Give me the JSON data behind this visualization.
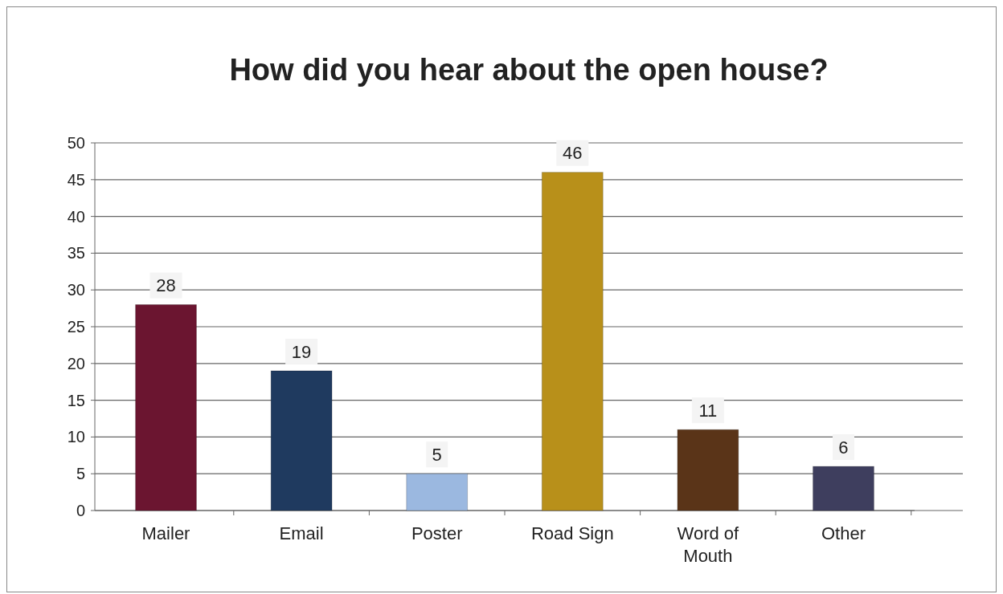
{
  "chart_data": {
    "type": "bar",
    "title": "How did you hear about the open house?",
    "categories": [
      "Mailer",
      "Email",
      "Poster",
      "Road Sign",
      "Word of Mouth",
      "Other"
    ],
    "values": [
      28,
      19,
      5,
      46,
      11,
      6
    ],
    "colors": [
      "#6b1530",
      "#1f3a5f",
      "#9bb8e0",
      "#b8901a",
      "#5a3418",
      "#3e3e5e"
    ],
    "ylim": [
      0,
      50
    ],
    "yticks": [
      0,
      5,
      10,
      15,
      20,
      25,
      30,
      35,
      40,
      45,
      50
    ],
    "grid": "y",
    "data_labels": true
  }
}
